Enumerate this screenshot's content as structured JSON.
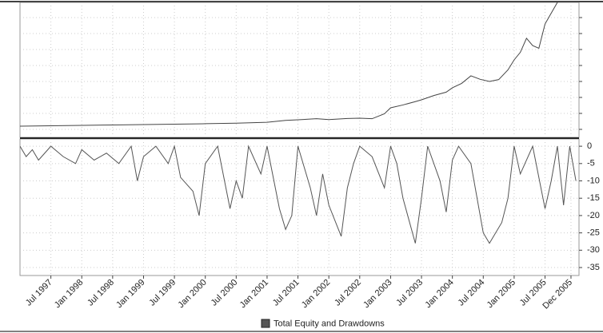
{
  "chart_data": {
    "type": "line",
    "legend": {
      "label": "Total Equity and Drawdowns",
      "color": "#555555"
    },
    "xlim": [
      1997.0,
      2006.05
    ],
    "xticks": [
      {
        "value": 1997.5,
        "label": "Jul 1997"
      },
      {
        "value": 1998.0,
        "label": "Jan 1998"
      },
      {
        "value": 1998.5,
        "label": "Jul 1998"
      },
      {
        "value": 1999.0,
        "label": "Jan 1999"
      },
      {
        "value": 1999.5,
        "label": "Jul 1999"
      },
      {
        "value": 2000.0,
        "label": "Jan 2000"
      },
      {
        "value": 2000.5,
        "label": "Jul 2000"
      },
      {
        "value": 2001.0,
        "label": "Jan 2001"
      },
      {
        "value": 2001.5,
        "label": "Jul 2001"
      },
      {
        "value": 2002.0,
        "label": "Jan 2002"
      },
      {
        "value": 2002.5,
        "label": "Jul 2002"
      },
      {
        "value": 2003.0,
        "label": "Jan 2003"
      },
      {
        "value": 2003.5,
        "label": "Jul 2003"
      },
      {
        "value": 2004.0,
        "label": "Jan 2004"
      },
      {
        "value": 2004.5,
        "label": "Jul 2004"
      },
      {
        "value": 2005.0,
        "label": "Jan 2005"
      },
      {
        "value": 2005.5,
        "label": "Jul 2005"
      },
      {
        "value": 2005.92,
        "label": "Dec 2005"
      }
    ],
    "grid": true,
    "equity": {
      "color": "#444444",
      "ylim": [
        0,
        100
      ],
      "x": [
        1997.0,
        1997.5,
        1998.0,
        1998.5,
        1999.0,
        1999.5,
        2000.0,
        2000.5,
        2001.0,
        2001.3,
        2001.5,
        2001.8,
        2002.0,
        2002.3,
        2002.5,
        2002.7,
        2002.9,
        2003.0,
        2003.2,
        2003.4,
        2003.5,
        2003.7,
        2003.9,
        2004.0,
        2004.15,
        2004.3,
        2004.45,
        2004.6,
        2004.75,
        2004.9,
        2005.0,
        2005.1,
        2005.2,
        2005.3,
        2005.4,
        2005.5,
        2005.6,
        2005.7,
        2005.8
      ],
      "values": [
        8.3,
        8.6,
        8.9,
        9.2,
        9.5,
        9.8,
        10.1,
        10.5,
        11.2,
        12.6,
        13.0,
        13.8,
        13.2,
        14.0,
        14.2,
        13.8,
        17.5,
        21.9,
        24.0,
        26.5,
        27.8,
        31.0,
        33.5,
        36.7,
        40.0,
        45.6,
        43.0,
        41.4,
        42.8,
        50.0,
        57.4,
        63.0,
        73.4,
        68.0,
        66.0,
        84.0,
        92.0,
        100.0,
        105.0
      ]
    },
    "drawdown": {
      "color": "#555555",
      "ylim": [
        -37.3,
        2.1
      ],
      "yticks": [
        0,
        -5,
        -10,
        -15,
        -20,
        -25,
        -30,
        -35
      ],
      "x": [
        1997.0,
        1997.1,
        1997.2,
        1997.3,
        1997.5,
        1997.7,
        1997.9,
        1998.0,
        1998.2,
        1998.4,
        1998.6,
        1998.8,
        1998.9,
        1999.0,
        1999.2,
        1999.4,
        1999.5,
        1999.6,
        1999.8,
        1999.9,
        2000.0,
        2000.2,
        2000.4,
        2000.5,
        2000.6,
        2000.7,
        2000.9,
        2001.0,
        2001.2,
        2001.3,
        2001.4,
        2001.5,
        2001.7,
        2001.8,
        2001.9,
        2002.0,
        2002.2,
        2002.3,
        2002.4,
        2002.5,
        2002.7,
        2002.9,
        2003.0,
        2003.1,
        2003.2,
        2003.4,
        2003.5,
        2003.6,
        2003.8,
        2003.9,
        2004.0,
        2004.1,
        2004.3,
        2004.5,
        2004.6,
        2004.8,
        2004.9,
        2005.0,
        2005.1,
        2005.3,
        2005.5,
        2005.6,
        2005.7,
        2005.8,
        2005.9,
        2006.0
      ],
      "values": [
        0,
        -3,
        -1,
        -4,
        0,
        -3,
        -5,
        -1,
        -4,
        -2,
        -5,
        0,
        -10,
        -3,
        0,
        -5,
        0,
        -9,
        -13,
        -20,
        -5,
        0,
        -18,
        -10,
        -15,
        0,
        -8,
        0,
        -18,
        -24,
        -20,
        0,
        -12,
        -20,
        -8,
        -17,
        -26,
        -12,
        -5,
        0,
        -3,
        -12,
        0,
        -5,
        -15,
        -28,
        -15,
        0,
        -10,
        -19,
        -4,
        0,
        -5,
        -25,
        -28,
        -22,
        -15,
        0,
        -8,
        0,
        -18,
        -10,
        0,
        -17,
        0,
        -10
      ]
    }
  }
}
